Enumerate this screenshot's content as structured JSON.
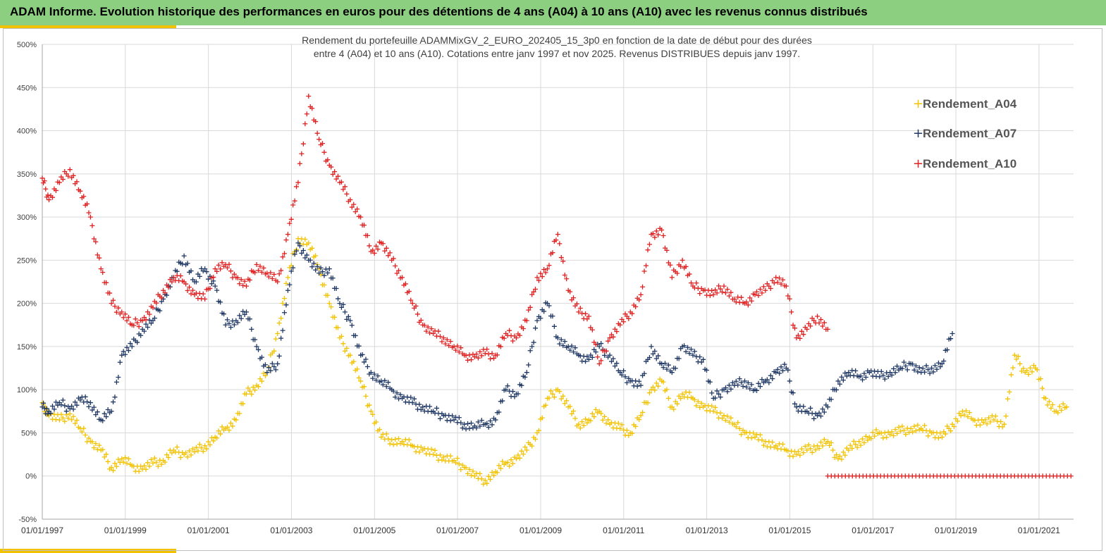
{
  "header": {
    "title": "ADAM Informe. Evolution historique des performances en euros pour des détentions de 4 ans (A04) à 10 ans (A10) avec les revenus connus distribués"
  },
  "colors": {
    "header_bg": "#8ccf80",
    "accent": "#f2c200",
    "series_A04": "#f2c200",
    "series_A07": "#203864",
    "series_A10": "#e02020"
  },
  "chart_data": {
    "type": "scatter",
    "marker": "plus",
    "subtitle_lines": [
      "Rendement du portefeuille ADAMMixGV_2_EURO_202405_15_3p0 en fonction de la date de début pour des durées",
      "entre 4 (A04) et 10 ans (A10). Cotations entre janv 1997 et nov 2025. Revenus DISTRIBUES depuis janv 1997."
    ],
    "x_axis": {
      "type": "date",
      "range": [
        "1997-01-01",
        "2021-11-01"
      ],
      "tick_labels": [
        "01/01/1997",
        "01/01/1999",
        "01/01/2001",
        "01/01/2003",
        "01/01/2005",
        "01/01/2007",
        "01/01/2009",
        "01/01/2011",
        "01/01/2013",
        "01/01/2015",
        "01/01/2017",
        "01/01/2019",
        "01/01/2021"
      ]
    },
    "y_axis": {
      "range": [
        -50,
        500
      ],
      "ticks": [
        -50,
        0,
        50,
        100,
        150,
        200,
        250,
        300,
        350,
        400,
        450,
        500
      ],
      "tick_labels": [
        "-50%",
        "0%",
        "50%",
        "100%",
        "150%",
        "200%",
        "250%",
        "300%",
        "350%",
        "400%",
        "450%",
        "500%"
      ]
    },
    "grid": true,
    "legend_position": "top-right",
    "series": [
      {
        "name": "Rendement_A04",
        "color": "#f2c200",
        "points": [
          [
            "1997-01-01",
            85
          ],
          [
            "1997-03-01",
            70
          ],
          [
            "1997-06-01",
            65
          ],
          [
            "1997-09-01",
            72
          ],
          [
            "1997-12-01",
            55
          ],
          [
            "1998-03-01",
            40
          ],
          [
            "1998-06-01",
            30
          ],
          [
            "1998-09-01",
            10
          ],
          [
            "1998-12-01",
            20
          ],
          [
            "1999-03-01",
            12
          ],
          [
            "1999-06-01",
            8
          ],
          [
            "1999-09-01",
            15
          ],
          [
            "1999-12-01",
            18
          ],
          [
            "2000-03-01",
            30
          ],
          [
            "2000-06-01",
            25
          ],
          [
            "2000-09-01",
            28
          ],
          [
            "2000-12-01",
            35
          ],
          [
            "2001-03-01",
            45
          ],
          [
            "2001-06-01",
            55
          ],
          [
            "2001-09-01",
            65
          ],
          [
            "2001-12-01",
            95
          ],
          [
            "2002-03-01",
            105
          ],
          [
            "2002-06-01",
            120
          ],
          [
            "2002-09-01",
            165
          ],
          [
            "2002-12-01",
            230
          ],
          [
            "2003-03-01",
            275
          ],
          [
            "2003-06-01",
            270
          ],
          [
            "2003-09-01",
            240
          ],
          [
            "2003-12-01",
            200
          ],
          [
            "2004-03-01",
            160
          ],
          [
            "2004-06-01",
            140
          ],
          [
            "2004-09-01",
            110
          ],
          [
            "2004-12-01",
            75
          ],
          [
            "2005-03-01",
            45
          ],
          [
            "2005-06-01",
            42
          ],
          [
            "2005-09-01",
            40
          ],
          [
            "2005-12-01",
            35
          ],
          [
            "2006-03-01",
            30
          ],
          [
            "2006-06-01",
            25
          ],
          [
            "2006-09-01",
            22
          ],
          [
            "2006-12-01",
            18
          ],
          [
            "2007-03-01",
            10
          ],
          [
            "2007-06-01",
            0
          ],
          [
            "2007-09-01",
            -5
          ],
          [
            "2007-12-01",
            5
          ],
          [
            "2008-03-01",
            15
          ],
          [
            "2008-06-01",
            20
          ],
          [
            "2008-09-01",
            30
          ],
          [
            "2008-12-01",
            50
          ],
          [
            "2009-03-01",
            90
          ],
          [
            "2009-06-01",
            100
          ],
          [
            "2009-09-01",
            80
          ],
          [
            "2009-12-01",
            60
          ],
          [
            "2010-03-01",
            65
          ],
          [
            "2010-06-01",
            75
          ],
          [
            "2010-09-01",
            60
          ],
          [
            "2010-12-01",
            55
          ],
          [
            "2011-03-01",
            50
          ],
          [
            "2011-06-01",
            70
          ],
          [
            "2011-09-01",
            100
          ],
          [
            "2011-12-01",
            110
          ],
          [
            "2012-03-01",
            80
          ],
          [
            "2012-06-01",
            95
          ],
          [
            "2012-09-01",
            90
          ],
          [
            "2012-12-01",
            80
          ],
          [
            "2013-03-01",
            75
          ],
          [
            "2013-06-01",
            70
          ],
          [
            "2013-09-01",
            60
          ],
          [
            "2013-12-01",
            50
          ],
          [
            "2014-03-01",
            45
          ],
          [
            "2014-06-01",
            40
          ],
          [
            "2014-09-01",
            35
          ],
          [
            "2014-12-01",
            30
          ],
          [
            "2015-03-01",
            25
          ],
          [
            "2015-06-01",
            30
          ],
          [
            "2015-09-01",
            35
          ],
          [
            "2015-12-01",
            40
          ],
          [
            "2016-03-01",
            20
          ],
          [
            "2016-06-01",
            30
          ],
          [
            "2016-09-01",
            40
          ],
          [
            "2016-12-01",
            45
          ],
          [
            "2017-03-01",
            50
          ],
          [
            "2017-06-01",
            48
          ],
          [
            "2017-09-01",
            52
          ],
          [
            "2017-12-01",
            55
          ],
          [
            "2018-03-01",
            55
          ],
          [
            "2018-06-01",
            50
          ],
          [
            "2018-09-01",
            45
          ],
          [
            "2018-12-01",
            60
          ],
          [
            "2019-03-01",
            75
          ],
          [
            "2019-06-01",
            65
          ],
          [
            "2019-09-01",
            62
          ],
          [
            "2019-12-01",
            65
          ],
          [
            "2020-03-01",
            60
          ],
          [
            "2020-06-01",
            140
          ],
          [
            "2020-09-01",
            120
          ],
          [
            "2020-12-01",
            125
          ],
          [
            "2021-03-01",
            90
          ],
          [
            "2021-06-01",
            75
          ],
          [
            "2021-09-01",
            80
          ]
        ]
      },
      {
        "name": "Rendement_A07",
        "color": "#203864",
        "points": [
          [
            "1997-01-01",
            80
          ],
          [
            "1997-03-01",
            75
          ],
          [
            "1997-06-01",
            85
          ],
          [
            "1997-09-01",
            78
          ],
          [
            "1997-12-01",
            88
          ],
          [
            "1998-03-01",
            85
          ],
          [
            "1998-06-01",
            65
          ],
          [
            "1998-09-01",
            75
          ],
          [
            "1998-12-01",
            140
          ],
          [
            "1999-03-01",
            150
          ],
          [
            "1999-06-01",
            170
          ],
          [
            "1999-09-01",
            180
          ],
          [
            "1999-12-01",
            205
          ],
          [
            "2000-03-01",
            230
          ],
          [
            "2000-06-01",
            255
          ],
          [
            "2000-09-01",
            225
          ],
          [
            "2000-12-01",
            240
          ],
          [
            "2001-03-01",
            220
          ],
          [
            "2001-06-01",
            175
          ],
          [
            "2001-09-01",
            180
          ],
          [
            "2001-12-01",
            190
          ],
          [
            "2002-03-01",
            150
          ],
          [
            "2002-06-01",
            120
          ],
          [
            "2002-09-01",
            130
          ],
          [
            "2002-12-01",
            215
          ],
          [
            "2003-03-01",
            270
          ],
          [
            "2003-06-01",
            250
          ],
          [
            "2003-09-01",
            235
          ],
          [
            "2003-12-01",
            240
          ],
          [
            "2004-03-01",
            200
          ],
          [
            "2004-06-01",
            180
          ],
          [
            "2004-09-01",
            140
          ],
          [
            "2004-12-01",
            120
          ],
          [
            "2005-03-01",
            110
          ],
          [
            "2005-06-01",
            100
          ],
          [
            "2005-09-01",
            90
          ],
          [
            "2005-12-01",
            85
          ],
          [
            "2006-03-01",
            80
          ],
          [
            "2006-06-01",
            75
          ],
          [
            "2006-09-01",
            70
          ],
          [
            "2006-12-01",
            65
          ],
          [
            "2007-03-01",
            60
          ],
          [
            "2007-06-01",
            58
          ],
          [
            "2007-09-01",
            60
          ],
          [
            "2007-12-01",
            65
          ],
          [
            "2008-03-01",
            100
          ],
          [
            "2008-06-01",
            95
          ],
          [
            "2008-09-01",
            120
          ],
          [
            "2008-12-01",
            180
          ],
          [
            "2009-03-01",
            200
          ],
          [
            "2009-06-01",
            160
          ],
          [
            "2009-09-01",
            150
          ],
          [
            "2009-12-01",
            140
          ],
          [
            "2010-03-01",
            135
          ],
          [
            "2010-06-01",
            150
          ],
          [
            "2010-09-01",
            140
          ],
          [
            "2010-12-01",
            120
          ],
          [
            "2011-03-01",
            110
          ],
          [
            "2011-06-01",
            105
          ],
          [
            "2011-09-01",
            150
          ],
          [
            "2011-12-01",
            130
          ],
          [
            "2012-03-01",
            120
          ],
          [
            "2012-06-01",
            150
          ],
          [
            "2012-09-01",
            140
          ],
          [
            "2012-12-01",
            135
          ],
          [
            "2013-03-01",
            90
          ],
          [
            "2013-06-01",
            100
          ],
          [
            "2013-09-01",
            105
          ],
          [
            "2013-12-01",
            110
          ],
          [
            "2014-03-01",
            100
          ],
          [
            "2014-06-01",
            110
          ],
          [
            "2014-09-01",
            120
          ],
          [
            "2014-12-01",
            125
          ],
          [
            "2015-03-01",
            80
          ],
          [
            "2015-06-01",
            75
          ],
          [
            "2015-09-01",
            70
          ],
          [
            "2015-12-01",
            80
          ],
          [
            "2016-03-01",
            110
          ],
          [
            "2016-06-01",
            120
          ],
          [
            "2016-09-01",
            115
          ],
          [
            "2016-12-01",
            120
          ],
          [
            "2017-03-01",
            115
          ],
          [
            "2017-06-01",
            120
          ],
          [
            "2017-09-01",
            125
          ],
          [
            "2017-12-01",
            130
          ],
          [
            "2018-03-01",
            120
          ],
          [
            "2018-06-01",
            125
          ],
          [
            "2018-09-01",
            130
          ],
          [
            "2018-12-01",
            165
          ]
        ]
      },
      {
        "name": "Rendement_A10",
        "color": "#e02020",
        "points": [
          [
            "1997-01-01",
            345
          ],
          [
            "1997-03-01",
            320
          ],
          [
            "1997-06-01",
            340
          ],
          [
            "1997-09-01",
            355
          ],
          [
            "1997-12-01",
            330
          ],
          [
            "1998-03-01",
            300
          ],
          [
            "1998-06-01",
            240
          ],
          [
            "1998-09-01",
            200
          ],
          [
            "1998-12-01",
            190
          ],
          [
            "1999-03-01",
            175
          ],
          [
            "1999-06-01",
            180
          ],
          [
            "1999-09-01",
            195
          ],
          [
            "1999-12-01",
            215
          ],
          [
            "2000-03-01",
            230
          ],
          [
            "2000-06-01",
            225
          ],
          [
            "2000-09-01",
            210
          ],
          [
            "2000-12-01",
            205
          ],
          [
            "2001-03-01",
            240
          ],
          [
            "2001-06-01",
            245
          ],
          [
            "2001-09-01",
            230
          ],
          [
            "2001-12-01",
            220
          ],
          [
            "2002-03-01",
            245
          ],
          [
            "2002-06-01",
            235
          ],
          [
            "2002-09-01",
            225
          ],
          [
            "2002-12-01",
            280
          ],
          [
            "2003-03-01",
            340
          ],
          [
            "2003-06-01",
            440
          ],
          [
            "2003-09-01",
            390
          ],
          [
            "2003-12-01",
            360
          ],
          [
            "2004-03-01",
            340
          ],
          [
            "2004-06-01",
            320
          ],
          [
            "2004-09-01",
            300
          ],
          [
            "2004-12-01",
            260
          ],
          [
            "2005-03-01",
            270
          ],
          [
            "2005-06-01",
            250
          ],
          [
            "2005-09-01",
            230
          ],
          [
            "2005-12-01",
            200
          ],
          [
            "2006-03-01",
            175
          ],
          [
            "2006-06-01",
            165
          ],
          [
            "2006-09-01",
            160
          ],
          [
            "2006-12-01",
            150
          ],
          [
            "2007-03-01",
            140
          ],
          [
            "2007-06-01",
            138
          ],
          [
            "2007-09-01",
            142
          ],
          [
            "2007-12-01",
            140
          ],
          [
            "2008-03-01",
            165
          ],
          [
            "2008-06-01",
            160
          ],
          [
            "2008-09-01",
            180
          ],
          [
            "2008-12-01",
            230
          ],
          [
            "2009-03-01",
            240
          ],
          [
            "2009-06-01",
            280
          ],
          [
            "2009-09-01",
            215
          ],
          [
            "2009-12-01",
            190
          ],
          [
            "2010-03-01",
            185
          ],
          [
            "2010-06-01",
            130
          ],
          [
            "2010-09-01",
            160
          ],
          [
            "2010-12-01",
            175
          ],
          [
            "2011-03-01",
            190
          ],
          [
            "2011-06-01",
            210
          ],
          [
            "2011-09-01",
            280
          ],
          [
            "2011-12-01",
            285
          ],
          [
            "2012-03-01",
            230
          ],
          [
            "2012-06-01",
            250
          ],
          [
            "2012-09-01",
            220
          ],
          [
            "2012-12-01",
            215
          ],
          [
            "2013-03-01",
            210
          ],
          [
            "2013-06-01",
            220
          ],
          [
            "2013-09-01",
            205
          ],
          [
            "2013-12-01",
            200
          ],
          [
            "2014-03-01",
            210
          ],
          [
            "2014-06-01",
            215
          ],
          [
            "2014-09-01",
            230
          ],
          [
            "2014-12-01",
            220
          ],
          [
            "2015-03-01",
            160
          ],
          [
            "2015-06-01",
            170
          ],
          [
            "2015-09-01",
            185
          ],
          [
            "2015-12-01",
            170
          ]
        ],
        "zero_band": [
          "2015-12-01",
          "2021-11-01",
          0
        ]
      }
    ]
  }
}
